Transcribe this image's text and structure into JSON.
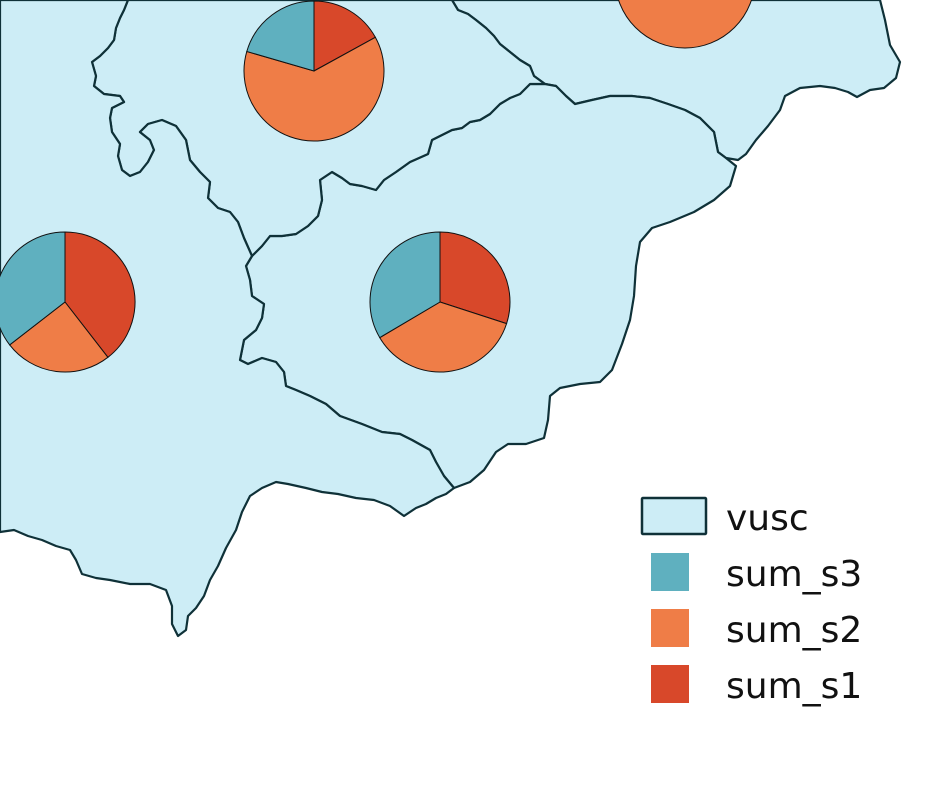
{
  "map": {
    "fill_color": "#cdedf6",
    "border_color": "#0f3138"
  },
  "legend": {
    "items": [
      {
        "label": "vusc",
        "kind": "polygon",
        "color": "#cdedf6"
      },
      {
        "label": "sum_s3",
        "kind": "slice",
        "color": "#5fb0bf"
      },
      {
        "label": "sum_s2",
        "kind": "slice",
        "color": "#ef7d47"
      },
      {
        "label": "sum_s1",
        "kind": "slice",
        "color": "#d8482a"
      }
    ]
  },
  "chart_data": {
    "type": "pie",
    "series_names": [
      "sum_s1",
      "sum_s2",
      "sum_s3"
    ],
    "colors": [
      "#d8482a",
      "#ef7d47",
      "#5fb0bf"
    ],
    "pies": [
      {
        "id": "north-region",
        "values": [
          0.17,
          0.625,
          0.205
        ]
      },
      {
        "id": "west-region",
        "values": [
          0.395,
          0.25,
          0.355
        ]
      },
      {
        "id": "center-region",
        "values": [
          0.3,
          0.365,
          0.335
        ]
      },
      {
        "id": "northeast-region",
        "values": [
          0.0,
          1.0,
          0.0
        ]
      }
    ]
  }
}
